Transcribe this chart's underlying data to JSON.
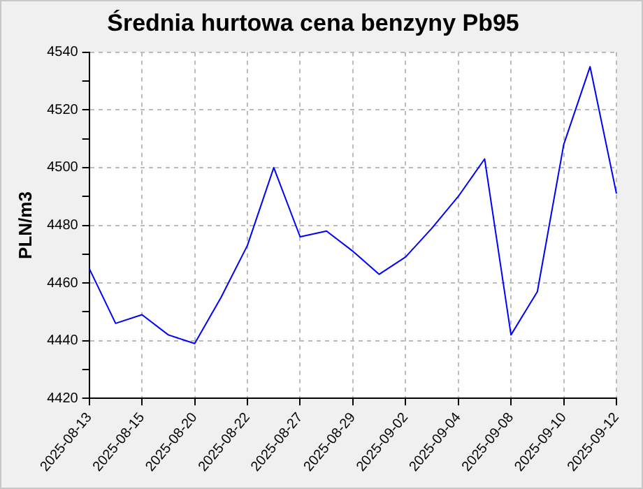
{
  "chart_data": {
    "type": "line",
    "title": "Średnia hurtowa cena benzyny Pb95",
    "ylabel": "PLN/m3",
    "categories": [
      "2025-08-13",
      null,
      "2025-08-15",
      null,
      "2025-08-20",
      null,
      "2025-08-22",
      null,
      "2025-08-27",
      null,
      "2025-08-29",
      null,
      "2025-09-02",
      null,
      "2025-09-04",
      null,
      "2025-09-08",
      null,
      "2025-09-10",
      null,
      "2025-09-12"
    ],
    "series": [
      {
        "color": "#0000ff",
        "values": [
          4465,
          4446,
          4449,
          4442,
          4439,
          4455,
          4473,
          4500,
          4476,
          4478,
          4471,
          4463,
          4469,
          4479,
          4490,
          4503,
          4442,
          4457,
          4508,
          4535,
          4491
        ]
      }
    ],
    "ylim": [
      4420,
      4540
    ],
    "yticks": [
      4420,
      {
        "value": 4430,
        "label": null
      },
      4440,
      {
        "value": 4450,
        "label": null
      },
      4460,
      {
        "value": 4470,
        "label": null
      },
      4480,
      {
        "value": 4490,
        "label": null
      },
      4500,
      {
        "value": 4510,
        "label": null
      },
      4520,
      {
        "value": 4530,
        "label": null
      },
      4540
    ],
    "grid": true,
    "marker": "none",
    "line_style": "solid"
  }
}
